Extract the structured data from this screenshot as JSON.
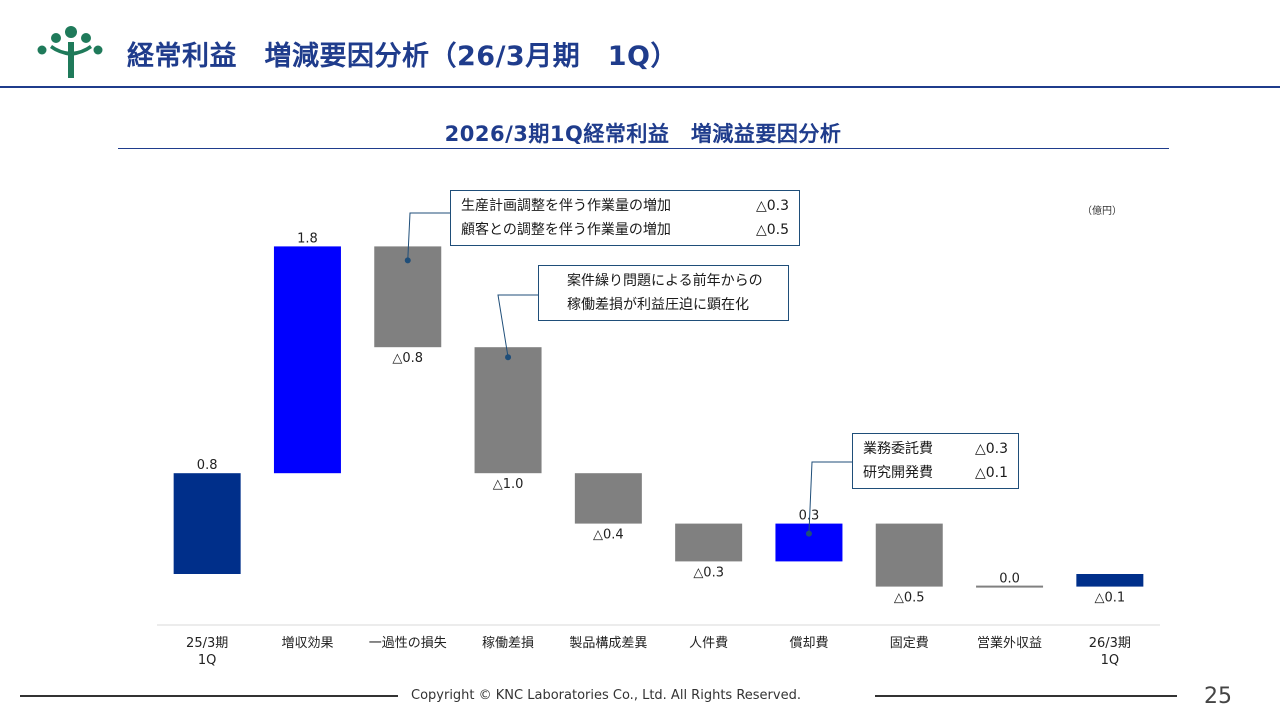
{
  "header": {
    "title": "経常利益　増減要因分析（26/3月期　1Q）",
    "logo_icon": "tree-logo-icon",
    "brand_color": "#1f7a5a",
    "accent_color": "#1f3c8c"
  },
  "chart_data": {
    "type": "waterfall",
    "title": "2026/3期1Q経常利益　増減益要因分析",
    "unit": "（億円）",
    "categories": [
      "25/3期\n1Q",
      "増収効果",
      "一過性の損失",
      "稼働差損",
      "製品構成差異",
      "人件費",
      "償却費",
      "固定費",
      "営業外収益",
      "26/3期\n1Q"
    ],
    "values": [
      0.8,
      1.8,
      -0.8,
      -1.0,
      -0.4,
      -0.3,
      0.3,
      -0.5,
      0.0,
      -0.1
    ],
    "kinds": [
      "total",
      "increase",
      "decrease",
      "decrease",
      "decrease",
      "decrease",
      "increase",
      "decrease",
      "neutral",
      "total"
    ],
    "labels": [
      "0.8",
      "1.8",
      "△0.8",
      "△1.0",
      "△0.4",
      "△0.3",
      "0.3",
      "△0.5",
      "0.0",
      "△0.1"
    ],
    "colors": {
      "total": "#002f8a",
      "increase": "#0000ff",
      "decrease": "#808080",
      "neutral": "#808080"
    }
  },
  "callouts": [
    {
      "rows": [
        {
          "text": "生産計画調整を伴う作業量の増加",
          "value": "△0.3"
        },
        {
          "text": "顧客との調整を伴う作業量の増加",
          "value": "△0.5"
        }
      ]
    },
    {
      "rows": [
        {
          "text": "案件繰り問題による前年からの",
          "value": ""
        },
        {
          "text": "稼働差損が利益圧迫に顕在化",
          "value": ""
        }
      ]
    },
    {
      "rows": [
        {
          "text": "業務委託費",
          "value": "△0.3"
        },
        {
          "text": "研究開発費",
          "value": "△0.1"
        }
      ]
    }
  ],
  "footer": {
    "copyright": "Copyright © KNC Laboratories Co., Ltd. All Rights Reserved.",
    "page_number": "25"
  }
}
